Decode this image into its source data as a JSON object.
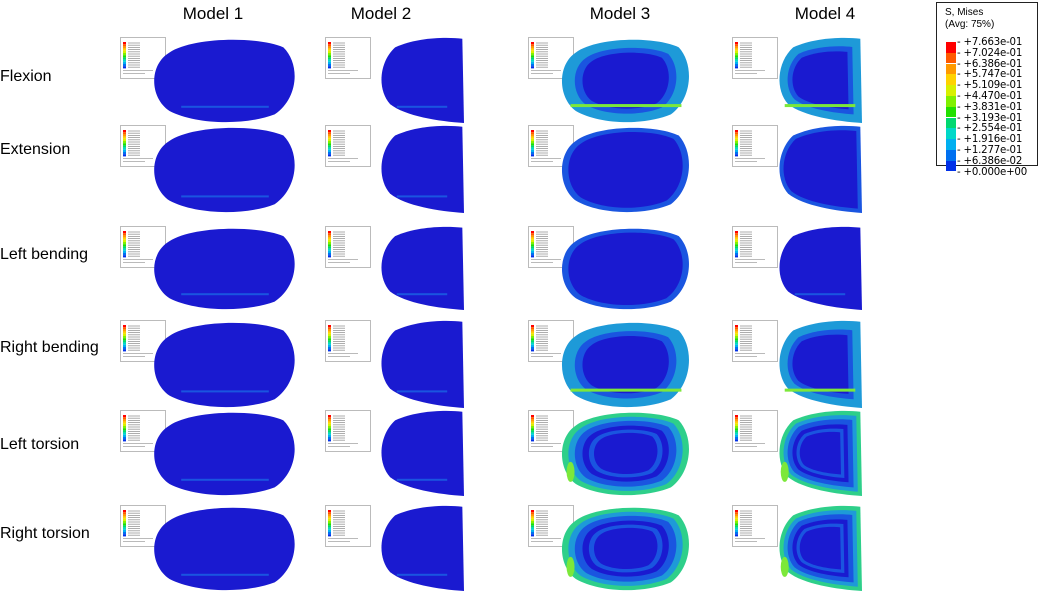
{
  "columns": [
    "Model 1",
    "Model 2",
    "Model 3",
    "Model 4"
  ],
  "rows": [
    "Flexion",
    "Extension",
    "Left bending",
    "Right bending",
    "Left torsion",
    "Right torsion"
  ],
  "legend": {
    "title_line1": "S, Mises",
    "title_line2": "(Avg: 75%)",
    "labels": [
      "+7.663e-01",
      "+7.024e-01",
      "+6.386e-01",
      "+5.747e-01",
      "+5.109e-01",
      "+4.470e-01",
      "+3.831e-01",
      "+3.193e-01",
      "+2.554e-01",
      "+1.916e-01",
      "+1.277e-01",
      "+6.386e-02",
      "+0.000e+00"
    ],
    "colors": [
      "#ff0000",
      "#ff5a00",
      "#ff9a00",
      "#ffd200",
      "#d8f000",
      "#80f000",
      "#22e000",
      "#00d870",
      "#00d8c8",
      "#00b0f0",
      "#0070f0",
      "#0030e8",
      "#0000e0"
    ]
  },
  "colors": {
    "base": "#1a1ad0",
    "low": "#1a55e0",
    "mid": "#1e9ad8",
    "high": "#2ecf8a",
    "peak": "#7ce83a"
  }
}
